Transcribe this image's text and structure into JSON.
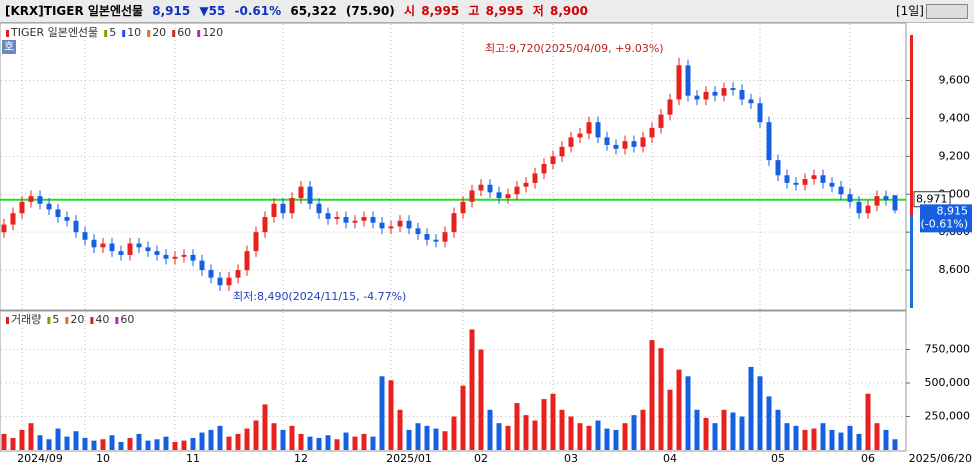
{
  "header": {
    "title": "[KRX]TIGER 일본엔선물",
    "price": "8,915",
    "change": "▼55",
    "change_pct": "-0.61%",
    "volume": "65,322",
    "volume_ratio": "(75.90)",
    "open_label": "시",
    "open": "8,995",
    "high_label": "고",
    "high": "8,995",
    "low_label": "저",
    "low": "8,900",
    "period": "[1일]",
    "side_button": "호"
  },
  "chart_data": [
    {
      "type": "candlestick",
      "legend": [
        {
          "name": "TIGER 일본엔선물",
          "color": "#e02020"
        },
        {
          "name": "5",
          "color": "#8c9a00"
        },
        {
          "name": "10",
          "color": "#2050e0"
        },
        {
          "name": "20",
          "color": "#e07020"
        },
        {
          "name": "60",
          "color": "#c03020"
        },
        {
          "name": "120",
          "color": "#c020c0"
        }
      ],
      "annotations": {
        "high": "최고:9,720(2025/04/09, +9.03%)",
        "low": "최저:8,490(2024/11/15, -4.77%)"
      },
      "reference_line": {
        "value": 8971,
        "label": "8,971",
        "color": "#22dd22"
      },
      "last_change_label": "(-0.61%)",
      "up_color": "#e8201e",
      "down_color": "#1560e0",
      "ylim": [
        8400,
        9840
      ],
      "yticks": [
        {
          "value": 8600,
          "label": "8,600"
        },
        {
          "value": 8800,
          "label": "8,800"
        },
        {
          "value": 9000,
          "label": "9,000"
        },
        {
          "value": 9200,
          "label": "9,200"
        },
        {
          "value": 9400,
          "label": "9,400"
        },
        {
          "value": 9600,
          "label": "9,600"
        }
      ],
      "grid": true,
      "categories": [
        null,
        null,
        "2024/09",
        null,
        null,
        null,
        null,
        null,
        null,
        "10",
        null,
        null,
        null,
        null,
        null,
        null,
        null,
        null,
        null,
        "11",
        null,
        null,
        null,
        null,
        null,
        null,
        null,
        null,
        null,
        null,
        null,
        "12",
        null,
        null,
        null,
        null,
        null,
        null,
        null,
        null,
        null,
        null,
        null,
        "2025/01",
        null,
        null,
        null,
        null,
        null,
        null,
        null,
        "02",
        null,
        null,
        null,
        null,
        null,
        null,
        null,
        null,
        null,
        "03",
        null,
        null,
        null,
        null,
        null,
        null,
        null,
        null,
        null,
        null,
        "04",
        null,
        null,
        null,
        null,
        null,
        null,
        null,
        null,
        null,
        null,
        null,
        "05",
        null,
        null,
        null,
        null,
        null,
        null,
        null,
        null,
        null,
        "06",
        null,
        null,
        null,
        null,
        "2025/06/20"
      ],
      "open": [
        8800,
        8840,
        8900,
        8960,
        8990,
        8950,
        8920,
        8880,
        8860,
        8800,
        8760,
        8720,
        8740,
        8700,
        8680,
        8740,
        8720,
        8700,
        8680,
        8660,
        8670,
        8680,
        8650,
        8600,
        8560,
        8520,
        8560,
        8600,
        8700,
        8800,
        8880,
        8950,
        8900,
        8980,
        9040,
        8950,
        8900,
        8870,
        8880,
        8850,
        8860,
        8880,
        8850,
        8820,
        8830,
        8860,
        8820,
        8790,
        8760,
        8750,
        8800,
        8900,
        8960,
        9020,
        9050,
        9010,
        8980,
        9000,
        9040,
        9060,
        9110,
        9160,
        9200,
        9250,
        9300,
        9320,
        9380,
        9300,
        9260,
        9240,
        9280,
        9250,
        9300,
        9350,
        9420,
        9500,
        9680,
        9520,
        9500,
        9540,
        9520,
        9560,
        9550,
        9500,
        9480,
        9380,
        9180,
        9100,
        9060,
        9050,
        9080,
        9100,
        9060,
        9040,
        9000,
        8960,
        8900,
        8940,
        8990,
        8995
      ],
      "high": [
        8870,
        8930,
        8990,
        9020,
        9020,
        8980,
        8950,
        8910,
        8890,
        8830,
        8790,
        8770,
        8770,
        8730,
        8770,
        8770,
        8750,
        8730,
        8710,
        8700,
        8710,
        8710,
        8680,
        8630,
        8590,
        8590,
        8630,
        8730,
        8830,
        8910,
        8980,
        8980,
        9010,
        9070,
        9070,
        8980,
        8930,
        8910,
        8910,
        8890,
        8910,
        8910,
        8880,
        8860,
        8890,
        8890,
        8850,
        8820,
        8790,
        8830,
        8930,
        8990,
        9050,
        9080,
        9080,
        9040,
        9030,
        9070,
        9090,
        9140,
        9190,
        9230,
        9280,
        9330,
        9350,
        9410,
        9410,
        9330,
        9290,
        9310,
        9310,
        9330,
        9380,
        9450,
        9530,
        9720,
        9710,
        9550,
        9570,
        9570,
        9590,
        9590,
        9580,
        9530,
        9510,
        9410,
        9210,
        9130,
        9090,
        9110,
        9130,
        9130,
        9090,
        9070,
        9030,
        8990,
        8970,
        9020,
        9020,
        8995
      ],
      "low": [
        8770,
        8810,
        8870,
        8930,
        8920,
        8890,
        8850,
        8830,
        8770,
        8730,
        8690,
        8690,
        8670,
        8650,
        8650,
        8690,
        8670,
        8650,
        8630,
        8630,
        8640,
        8620,
        8570,
        8530,
        8490,
        8490,
        8530,
        8570,
        8670,
        8770,
        8850,
        8870,
        8870,
        8950,
        8920,
        8870,
        8840,
        8840,
        8820,
        8820,
        8830,
        8820,
        8790,
        8790,
        8800,
        8790,
        8760,
        8730,
        8720,
        8720,
        8770,
        8870,
        8930,
        8990,
        8980,
        8950,
        8950,
        8970,
        9010,
        9030,
        9080,
        9130,
        9170,
        9220,
        9270,
        9290,
        9270,
        9230,
        9210,
        9210,
        9220,
        9220,
        9270,
        9320,
        9390,
        9470,
        9490,
        9470,
        9470,
        9490,
        9490,
        9520,
        9470,
        9450,
        9350,
        9150,
        9070,
        9030,
        9020,
        9020,
        9050,
        9030,
        9010,
        8970,
        8930,
        8870,
        8870,
        8910,
        8940,
        8900
      ],
      "close": [
        8840,
        8900,
        8960,
        8990,
        8950,
        8920,
        8880,
        8860,
        8800,
        8760,
        8720,
        8740,
        8700,
        8680,
        8740,
        8720,
        8700,
        8680,
        8660,
        8670,
        8680,
        8650,
        8600,
        8560,
        8520,
        8560,
        8600,
        8700,
        8800,
        8880,
        8950,
        8900,
        8980,
        9040,
        8950,
        8900,
        8870,
        8880,
        8850,
        8860,
        8880,
        8850,
        8820,
        8830,
        8860,
        8820,
        8790,
        8760,
        8750,
        8800,
        8900,
        8960,
        9020,
        9050,
        9010,
        8980,
        9000,
        9040,
        9060,
        9110,
        9160,
        9200,
        9250,
        9300,
        9320,
        9380,
        9300,
        9260,
        9240,
        9280,
        9250,
        9300,
        9350,
        9420,
        9500,
        9680,
        9520,
        9500,
        9540,
        9520,
        9560,
        9550,
        9500,
        9480,
        9380,
        9180,
        9100,
        9060,
        9050,
        9080,
        9100,
        9060,
        9040,
        9000,
        8960,
        8900,
        8940,
        8990,
        8970,
        8915
      ]
    },
    {
      "type": "bar",
      "legend": [
        {
          "name": "거래량",
          "color": "#e02020"
        },
        {
          "name": "5",
          "color": "#8c9a00"
        },
        {
          "name": "20",
          "color": "#e07020"
        },
        {
          "name": "40",
          "color": "#d02020"
        },
        {
          "name": "60",
          "color": "#c020c0"
        }
      ],
      "ylim": [
        0,
        1000000
      ],
      "yticks": [
        {
          "value": 250000,
          "label": "250,000"
        },
        {
          "value": 500000,
          "label": "500,000"
        },
        {
          "value": 750000,
          "label": "750,000"
        }
      ],
      "values": [
        120000,
        90000,
        150000,
        200000,
        110000,
        80000,
        160000,
        100000,
        140000,
        90000,
        70000,
        80000,
        110000,
        60000,
        90000,
        120000,
        70000,
        80000,
        100000,
        60000,
        70000,
        90000,
        130000,
        150000,
        180000,
        100000,
        120000,
        160000,
        220000,
        340000,
        200000,
        150000,
        180000,
        120000,
        100000,
        90000,
        110000,
        80000,
        130000,
        100000,
        120000,
        100000,
        550000,
        520000,
        300000,
        150000,
        200000,
        180000,
        160000,
        140000,
        250000,
        480000,
        900000,
        750000,
        300000,
        200000,
        180000,
        350000,
        260000,
        220000,
        380000,
        420000,
        300000,
        250000,
        200000,
        180000,
        220000,
        160000,
        150000,
        200000,
        260000,
        300000,
        820000,
        760000,
        450000,
        600000,
        550000,
        300000,
        240000,
        200000,
        300000,
        280000,
        250000,
        620000,
        550000,
        400000,
        300000,
        200000,
        180000,
        150000,
        160000,
        200000,
        150000,
        130000,
        180000,
        120000,
        420000,
        200000,
        150000,
        80000
      ]
    }
  ]
}
